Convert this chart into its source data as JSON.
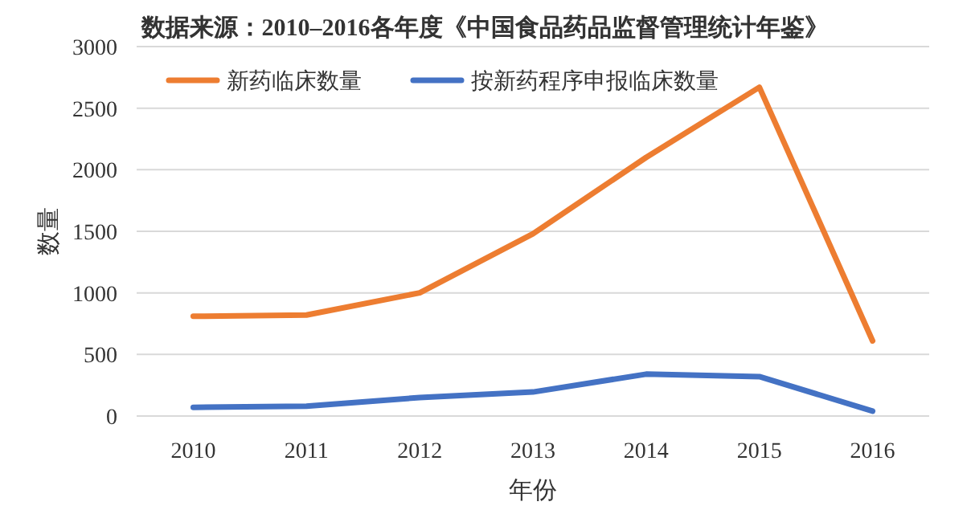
{
  "chart_data": {
    "type": "line",
    "title": "数据来源：2010–2016各年度《中国食品药品监督管理统计年鉴》",
    "xlabel": "年份",
    "ylabel": "数量",
    "categories": [
      "2010",
      "2011",
      "2012",
      "2013",
      "2014",
      "2015",
      "2016"
    ],
    "series": [
      {
        "name": "新药临床数量",
        "color": "#ed7d31",
        "values": [
          810,
          820,
          1000,
          1480,
          2100,
          2670,
          610
        ]
      },
      {
        "name": "按新药程序申报临床数量",
        "color": "#4472c4",
        "values": [
          70,
          80,
          150,
          195,
          340,
          320,
          40
        ]
      }
    ],
    "ylim": [
      0,
      3000
    ],
    "yticks": [
      0,
      500,
      1000,
      1500,
      2000,
      2500,
      3000
    ],
    "grid": "y",
    "legend": "top left",
    "marker": "none",
    "line_style": "solid"
  }
}
